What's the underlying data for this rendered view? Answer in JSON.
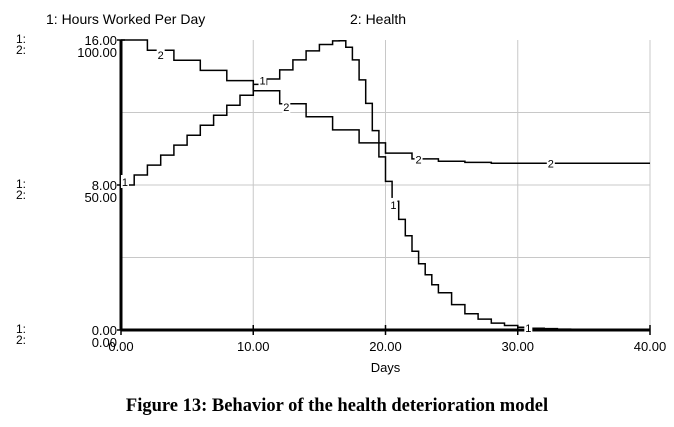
{
  "chart_data": {
    "type": "line",
    "title": "",
    "xlabel": "Days",
    "x_ticks": [
      "0.00",
      "10.00",
      "20.00",
      "30.00",
      "40.00"
    ],
    "xlim": [
      0,
      40
    ],
    "grid": true,
    "legend_position": "top",
    "series": [
      {
        "id": "1",
        "name": "1: Hours Worked Per Day",
        "axis_ticks": [
          "16.00",
          "8.00",
          "0.00"
        ],
        "ylim": [
          0,
          16
        ],
        "marker_x": [
          0.3,
          10.7,
          20.6,
          30.8
        ],
        "x": [
          0,
          1,
          2,
          3,
          4,
          5,
          6,
          7,
          8,
          9,
          10,
          11,
          12,
          13,
          14,
          15,
          16,
          16.5,
          17,
          17.5,
          18,
          18.5,
          19,
          19.5,
          20,
          20.5,
          21,
          21.5,
          22,
          22.5,
          23,
          23.5,
          24,
          25,
          26,
          27,
          28,
          29,
          30,
          31,
          32,
          33,
          34,
          36,
          38,
          40
        ],
        "values": [
          8.0,
          8.55,
          9.1,
          9.65,
          10.2,
          10.75,
          11.3,
          11.85,
          12.4,
          12.95,
          13.55,
          13.85,
          14.35,
          14.9,
          15.4,
          15.75,
          15.95,
          15.96,
          15.6,
          14.9,
          13.8,
          12.5,
          11.0,
          9.55,
          8.2,
          7.1,
          6.1,
          5.2,
          4.35,
          3.65,
          3.05,
          2.5,
          2.05,
          1.4,
          0.9,
          0.6,
          0.38,
          0.25,
          0.15,
          0.1,
          0.08,
          0.05,
          0.02,
          0.02,
          0.02,
          0.02
        ]
      },
      {
        "id": "2",
        "name": "2: Health",
        "axis_ticks": [
          "100.00",
          "50.00",
          "0.00"
        ],
        "ylim": [
          0,
          100
        ],
        "marker_x": [
          3.0,
          12.5,
          22.5,
          32.5
        ],
        "x": [
          0,
          2,
          4,
          6,
          8,
          10,
          12,
          14,
          16,
          18,
          20,
          22,
          24,
          26,
          28,
          30,
          32,
          34,
          36,
          38,
          40
        ],
        "values": [
          100.0,
          96.5,
          93.0,
          89.5,
          86.0,
          82.5,
          78.0,
          73.5,
          69.0,
          64.5,
          61.0,
          59.0,
          58.2,
          57.8,
          57.5,
          57.5,
          57.5,
          57.5,
          57.5,
          57.5,
          57.5
        ]
      }
    ]
  },
  "caption": "Figure 13: Behavior of the health deterioration model"
}
